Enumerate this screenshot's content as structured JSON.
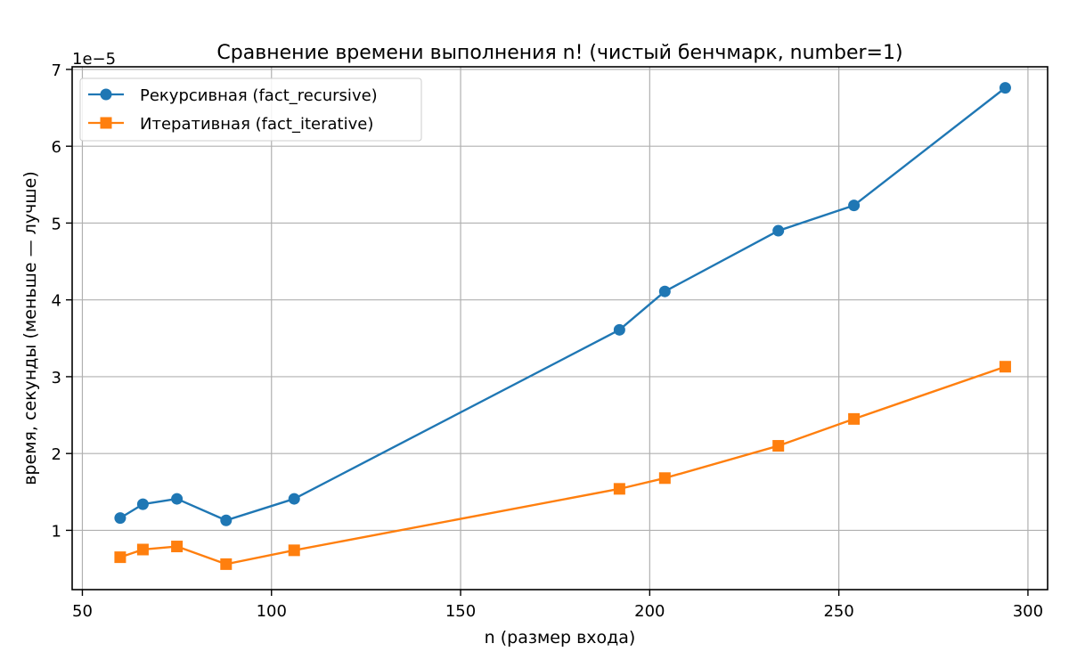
{
  "chart_data": {
    "type": "line",
    "title": "Сравнение времени выполнения n! (чистый бенчмарк, number=1)",
    "xlabel": "n (размер входа)",
    "ylabel": "время, секунды (меньше — лучше)",
    "y_offset_label": "1e−5",
    "xlim": [
      47.3,
      305.2
    ],
    "ylim": [
      2.282e-06,
      7.034e-05
    ],
    "x_ticks": [
      50,
      100,
      150,
      200,
      250,
      300
    ],
    "x_tick_labels": [
      "50",
      "100",
      "150",
      "200",
      "250",
      "300"
    ],
    "y_ticks": [
      1e-05,
      2e-05,
      3e-05,
      4e-05,
      5e-05,
      6e-05,
      7e-05
    ],
    "y_tick_labels": [
      "1",
      "2",
      "3",
      "4",
      "5",
      "6",
      "7"
    ],
    "grid": true,
    "legend_position": "upper-left",
    "x": [
      60,
      66,
      75,
      88,
      106,
      192,
      204,
      234,
      254,
      294
    ],
    "series": [
      {
        "name": "Рекурсивная (fact_recursive)",
        "color": "#1f77b4",
        "marker": "circle",
        "values": [
          1.16e-05,
          1.34e-05,
          1.41e-05,
          1.13e-05,
          1.41e-05,
          3.61e-05,
          4.11e-05,
          4.9e-05,
          5.23e-05,
          6.76e-05
        ]
      },
      {
        "name": "Итеративная (fact_iterative)",
        "color": "#ff7f0e",
        "marker": "square",
        "values": [
          6.5e-06,
          7.5e-06,
          7.9e-06,
          5.6e-06,
          7.4e-06,
          1.54e-05,
          1.68e-05,
          2.1e-05,
          2.45e-05,
          3.13e-05
        ]
      }
    ]
  }
}
